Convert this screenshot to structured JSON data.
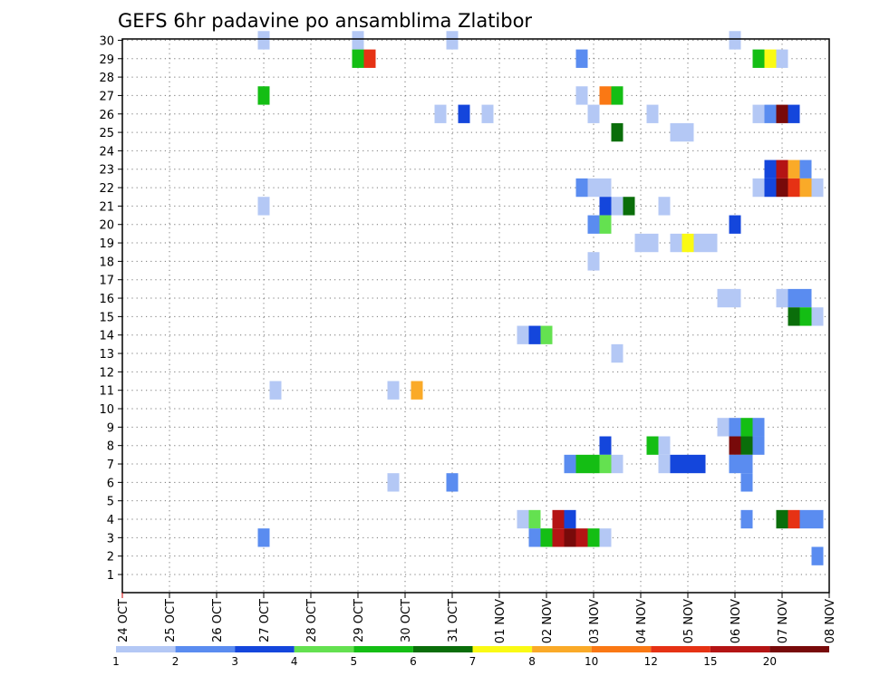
{
  "chart_data": {
    "type": "heatmap",
    "title": "GEFS 6hr padavine po ansamblima Zlatibor",
    "xlabel": "",
    "ylabel": "",
    "x_dates": [
      "24 OCT",
      "25 OCT",
      "26 OCT",
      "27 OCT",
      "28 OCT",
      "29 OCT",
      "30 OCT",
      "31 OCT",
      "01 NOV",
      "02 NOV",
      "03 NOV",
      "04 NOV",
      "05 NOV",
      "06 NOV",
      "07 NOV",
      "08 NOV"
    ],
    "y_members": [
      1,
      2,
      3,
      4,
      5,
      6,
      7,
      8,
      9,
      10,
      11,
      12,
      13,
      14,
      15,
      16,
      17,
      18,
      19,
      20,
      21,
      22,
      23,
      24,
      25,
      26,
      27,
      28,
      29,
      30
    ],
    "time_step_hours": 6,
    "grid": "dotted",
    "legend_position": "bottom",
    "colorbar": {
      "labels": [
        "1",
        "2",
        "3",
        "4",
        "5",
        "6",
        "7",
        "8",
        "10",
        "12",
        "15",
        "20"
      ],
      "colors": [
        "#b4c8f5",
        "#5a8cf0",
        "#1446dc",
        "#64e150",
        "#14be14",
        "#0a6e0a",
        "#fafa14",
        "#faaa28",
        "#fa7814",
        "#e63214",
        "#b41414",
        "#780a0a"
      ]
    },
    "cells": [
      [
        3,
        30,
        1
      ],
      [
        5,
        30,
        1
      ],
      [
        7,
        30,
        1
      ],
      [
        13,
        30,
        1
      ],
      [
        5,
        29,
        5
      ],
      [
        5.25,
        29,
        12
      ],
      [
        9.75,
        29,
        2
      ],
      [
        13.5,
        29,
        5
      ],
      [
        13.75,
        29,
        7
      ],
      [
        14,
        29,
        1
      ],
      [
        3,
        27,
        5
      ],
      [
        9.75,
        27,
        1
      ],
      [
        10.25,
        27,
        10
      ],
      [
        10.5,
        27,
        5
      ],
      [
        6.75,
        26,
        1
      ],
      [
        7.25,
        26,
        3
      ],
      [
        7.75,
        26,
        1
      ],
      [
        10,
        26,
        1
      ],
      [
        11.25,
        26,
        1
      ],
      [
        13.5,
        26,
        1
      ],
      [
        13.75,
        26,
        2
      ],
      [
        14,
        26,
        20
      ],
      [
        14.25,
        26,
        3
      ],
      [
        10.5,
        25,
        6
      ],
      [
        11.75,
        25,
        1
      ],
      [
        12,
        25,
        1
      ],
      [
        13.75,
        23,
        3
      ],
      [
        14,
        23,
        15
      ],
      [
        14.25,
        23,
        8
      ],
      [
        14.5,
        23,
        2
      ],
      [
        9.75,
        22,
        2
      ],
      [
        10,
        22,
        1
      ],
      [
        10.25,
        22,
        1
      ],
      [
        13.5,
        22,
        1
      ],
      [
        13.75,
        22,
        3
      ],
      [
        14,
        22,
        20
      ],
      [
        14.25,
        22,
        12
      ],
      [
        14.5,
        22,
        8
      ],
      [
        14.75,
        22,
        1
      ],
      [
        3,
        21,
        1
      ],
      [
        10.25,
        21,
        3
      ],
      [
        10.5,
        21,
        1
      ],
      [
        10.75,
        21,
        6
      ],
      [
        11.5,
        21,
        1
      ],
      [
        10,
        20,
        2
      ],
      [
        10.25,
        20,
        4
      ],
      [
        13,
        20,
        3
      ],
      [
        11,
        19,
        1
      ],
      [
        11.25,
        19,
        1
      ],
      [
        11.75,
        19,
        1
      ],
      [
        12,
        19,
        7
      ],
      [
        12.25,
        19,
        1
      ],
      [
        12.5,
        19,
        1
      ],
      [
        10,
        18,
        1
      ],
      [
        12.75,
        16,
        1
      ],
      [
        13,
        16,
        1
      ],
      [
        14,
        16,
        1
      ],
      [
        14.25,
        16,
        2
      ],
      [
        14.5,
        16,
        2
      ],
      [
        14.25,
        15,
        6
      ],
      [
        14.5,
        15,
        5
      ],
      [
        14.75,
        15,
        1
      ],
      [
        8.5,
        14,
        1
      ],
      [
        8.75,
        14,
        3
      ],
      [
        9,
        14,
        4
      ],
      [
        10.5,
        13,
        1
      ],
      [
        3.25,
        11,
        1
      ],
      [
        5.75,
        11,
        1
      ],
      [
        6.25,
        11,
        8
      ],
      [
        12.75,
        9,
        1
      ],
      [
        13,
        9,
        2
      ],
      [
        13.25,
        9,
        5
      ],
      [
        13.5,
        9,
        2
      ],
      [
        10.25,
        8,
        3
      ],
      [
        11.25,
        8,
        5
      ],
      [
        11.5,
        8,
        1
      ],
      [
        13,
        8,
        20
      ],
      [
        13.25,
        8,
        6
      ],
      [
        13.5,
        8,
        2
      ],
      [
        9.5,
        7,
        2
      ],
      [
        9.75,
        7,
        5
      ],
      [
        10,
        7,
        5
      ],
      [
        10.25,
        7,
        4
      ],
      [
        10.5,
        7,
        1
      ],
      [
        11.5,
        7,
        1
      ],
      [
        11.75,
        7,
        3
      ],
      [
        12,
        7,
        3
      ],
      [
        12.25,
        7,
        3
      ],
      [
        13,
        7,
        2
      ],
      [
        13.25,
        7,
        2
      ],
      [
        5.75,
        6,
        1
      ],
      [
        7,
        6,
        2
      ],
      [
        13.25,
        6,
        2
      ],
      [
        8.5,
        4,
        1
      ],
      [
        8.75,
        4,
        4
      ],
      [
        9.25,
        4,
        15
      ],
      [
        9.5,
        4,
        3
      ],
      [
        13.25,
        4,
        2
      ],
      [
        14,
        4,
        6
      ],
      [
        14.25,
        4,
        12
      ],
      [
        14.5,
        4,
        2
      ],
      [
        14.75,
        4,
        2
      ],
      [
        3,
        3,
        2
      ],
      [
        8.75,
        3,
        2
      ],
      [
        9,
        3,
        5
      ],
      [
        9.25,
        3,
        15
      ],
      [
        9.5,
        3,
        20
      ],
      [
        9.75,
        3,
        15
      ],
      [
        10,
        3,
        5
      ],
      [
        10.25,
        3,
        1
      ],
      [
        14.75,
        2,
        2
      ]
    ]
  }
}
